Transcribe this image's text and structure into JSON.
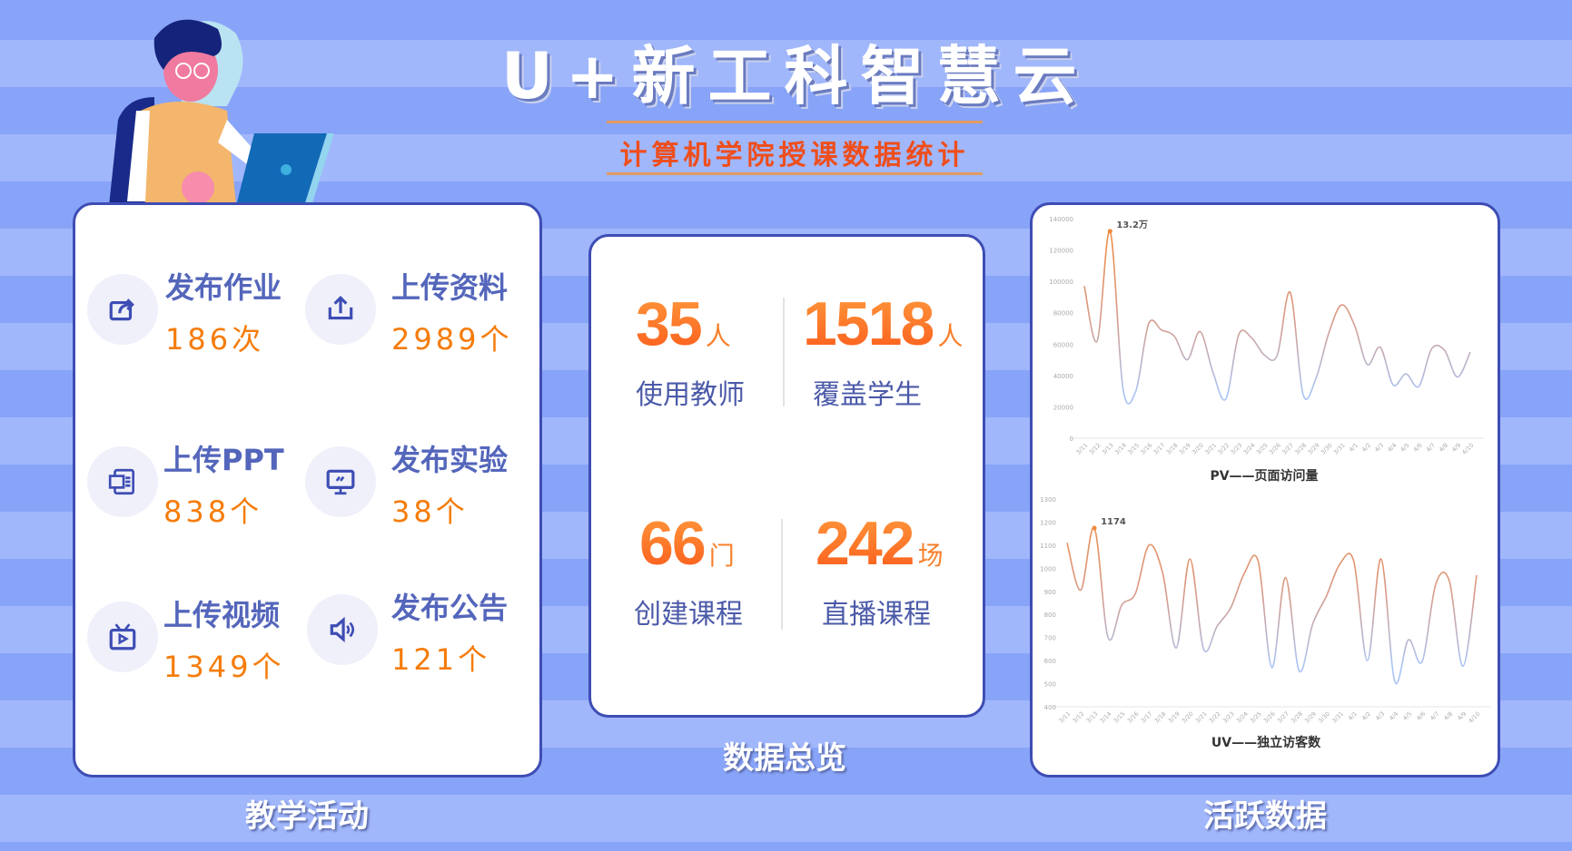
{
  "header": {
    "title": "U+新工科智慧云",
    "subtitle": "计算机学院授课数据统计"
  },
  "colors": {
    "accent": "#f57c0a",
    "label": "#5466bb",
    "border": "#3e4db4",
    "background_dark": "#88a4f8",
    "background_light": "#a1b7fb",
    "line_high": "#f08a3c",
    "line_low": "#a9c4f5"
  },
  "teaching": {
    "caption": "教学活动",
    "items": [
      {
        "label": "发布作业",
        "value": "186次",
        "icon": "share-icon"
      },
      {
        "label": "上传资料",
        "value": "2989个",
        "icon": "upload-icon"
      },
      {
        "label": "上传PPT",
        "value": "838个",
        "icon": "ppt-icon"
      },
      {
        "label": "发布实验",
        "value": "38个",
        "icon": "monitor-icon"
      },
      {
        "label": "上传视频",
        "value": "1349个",
        "icon": "video-icon"
      },
      {
        "label": "发布公告",
        "value": "121个",
        "icon": "speaker-icon"
      }
    ]
  },
  "overview": {
    "caption": "数据总览",
    "stats": [
      {
        "number": "35",
        "unit": "人",
        "label": "使用教师"
      },
      {
        "number": "1518",
        "unit": "人",
        "label": "覆盖学生"
      },
      {
        "number": "66",
        "unit": "门",
        "label": "创建课程"
      },
      {
        "number": "242",
        "unit": "场",
        "label": "直播课程"
      }
    ]
  },
  "activity": {
    "caption": "活跃数据"
  },
  "chart_data": [
    {
      "type": "line",
      "title": "PV——页面访问量",
      "x": [
        "3/11",
        "3/12",
        "3/13",
        "3/14",
        "3/15",
        "3/16",
        "3/17",
        "3/18",
        "3/19",
        "3/20",
        "3/21",
        "3/22",
        "3/23",
        "3/24",
        "3/25",
        "3/26",
        "3/27",
        "3/28",
        "3/29",
        "3/30",
        "3/31",
        "4/1",
        "4/2",
        "4/3",
        "4/4",
        "4/5",
        "4/6",
        "4/7",
        "4/8",
        "4/9",
        "4/10"
      ],
      "values": [
        97000,
        62000,
        132000,
        32000,
        30000,
        73000,
        69000,
        65000,
        50000,
        68000,
        42000,
        25000,
        66000,
        64000,
        53000,
        53000,
        93000,
        28000,
        38000,
        67000,
        85000,
        72000,
        47000,
        58000,
        34000,
        41000,
        33000,
        57000,
        56000,
        39000,
        55000
      ],
      "ylim": [
        0,
        140000
      ],
      "yticks": [
        "0",
        "20000",
        "40000",
        "60000",
        "80000",
        "100000",
        "120000",
        "140000"
      ],
      "annotation": {
        "x": "3/13",
        "text": "13.2万"
      },
      "grid": false,
      "smooth": true
    },
    {
      "type": "line",
      "title": "UV——独立访客数",
      "x": [
        "3/11",
        "3/12",
        "3/13",
        "3/14",
        "3/15",
        "3/16",
        "3/17",
        "3/18",
        "3/19",
        "3/20",
        "3/21",
        "3/22",
        "3/23",
        "3/24",
        "3/25",
        "3/26",
        "3/27",
        "3/28",
        "3/29",
        "3/30",
        "3/31",
        "4/1",
        "4/2",
        "4/3",
        "4/4",
        "4/5",
        "4/6",
        "4/7",
        "4/8",
        "4/9",
        "4/10"
      ],
      "values": [
        1110,
        905,
        1174,
        700,
        840,
        890,
        1100,
        980,
        655,
        1040,
        650,
        750,
        830,
        980,
        1030,
        570,
        960,
        555,
        760,
        880,
        1020,
        1030,
        600,
        1040,
        510,
        690,
        595,
        930,
        945,
        575,
        970
      ],
      "ylim": [
        400,
        1300
      ],
      "yticks": [
        "400",
        "500",
        "600",
        "700",
        "800",
        "900",
        "1000",
        "1100",
        "1200",
        "1300"
      ],
      "annotation": {
        "x": "3/13",
        "text": "1174"
      },
      "grid": false,
      "smooth": true
    }
  ]
}
